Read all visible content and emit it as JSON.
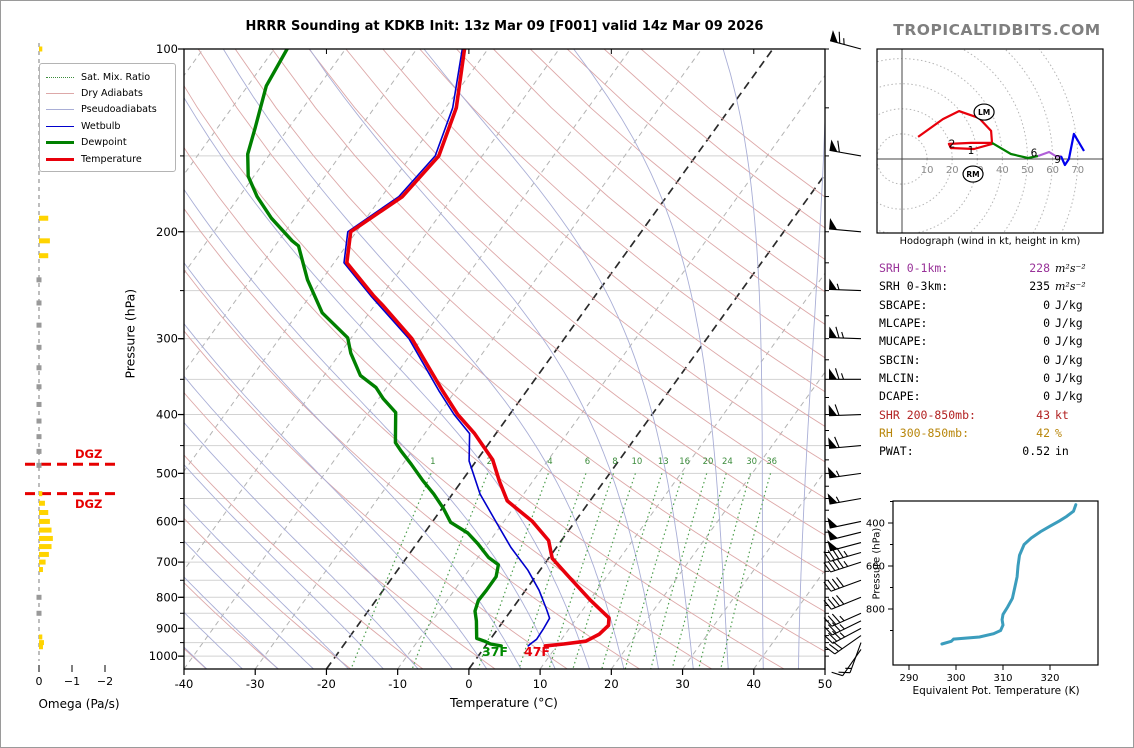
{
  "title": "HRRR Sounding at KDKB Init: 13z Mar 09 [F001] valid 14z Mar 09 2026",
  "watermark": "TROPICALTIDBITS.COM",
  "legend": {
    "items": [
      {
        "label": "Sat. Mix. Ratio",
        "color": "#3c8c3c",
        "style": "dotted",
        "width": 1.2
      },
      {
        "label": "Dry Adiabats",
        "color": "#dda8a8",
        "style": "solid",
        "width": 1.2
      },
      {
        "label": "Pseudoadiabats",
        "color": "#a9aed6",
        "style": "solid",
        "width": 1.2
      },
      {
        "label": "Wetbulb",
        "color": "#0000cc",
        "style": "solid",
        "width": 1.6
      },
      {
        "label": "Dewpoint",
        "color": "#008000",
        "style": "solid",
        "width": 3.2
      },
      {
        "label": "Temperature",
        "color": "#e8000b",
        "style": "solid",
        "width": 3.6
      }
    ]
  },
  "skewt": {
    "xlabel": "Temperature (°C)",
    "ylabel": "Pressure (hPa)",
    "pressure_ticks": [
      100,
      200,
      300,
      400,
      500,
      600,
      700,
      800,
      900,
      1000
    ],
    "temp_ticks": [
      -40,
      -30,
      -20,
      -10,
      0,
      10,
      20,
      30,
      40,
      50
    ],
    "mixratio_labels": [
      1,
      2,
      4,
      6,
      8,
      10,
      13,
      16,
      20,
      24,
      30,
      36
    ],
    "surface_temp_label": "47F",
    "surface_dewp_label": "37F",
    "dgz_label": "DGZ"
  },
  "omega": {
    "label": "Omega (Pa/s)",
    "ticks": [
      0,
      -1,
      -2
    ]
  },
  "hodograph": {
    "caption": "Hodograph (wind in kt, height in km)",
    "ring_labels": [
      10,
      20,
      30,
      40,
      50,
      60,
      70
    ],
    "lm_label": "LM",
    "rm_label": "RM"
  },
  "stats": {
    "rows": [
      {
        "label": "SRH 0-1km:",
        "value": "228",
        "unit": "m²s⁻²",
        "color": "#993399",
        "math_unit": true
      },
      {
        "label": "SRH 0-3km:",
        "value": "235",
        "unit": "m²s⁻²",
        "color": "#000000",
        "math_unit": true
      },
      {
        "label": "SBCAPE:",
        "value": "0",
        "unit": "J/kg",
        "color": "#000000",
        "math_unit": false
      },
      {
        "label": "MLCAPE:",
        "value": "0",
        "unit": "J/kg",
        "color": "#000000",
        "math_unit": false
      },
      {
        "label": "MUCAPE:",
        "value": "0",
        "unit": "J/kg",
        "color": "#000000",
        "math_unit": false
      },
      {
        "label": "SBCIN:",
        "value": "0",
        "unit": "J/kg",
        "color": "#000000",
        "math_unit": false
      },
      {
        "label": "MLCIN:",
        "value": "0",
        "unit": "J/kg",
        "color": "#000000",
        "math_unit": false
      },
      {
        "label": "DCAPE:",
        "value": "0",
        "unit": "J/kg",
        "color": "#000000",
        "math_unit": false
      },
      {
        "label": "SHR 200-850mb:",
        "value": "43",
        "unit": "kt",
        "color": "#b22222",
        "math_unit": false
      },
      {
        "label": "RH 300-850mb:",
        "value": "42",
        "unit": "%",
        "color": "#b8860b",
        "math_unit": false
      },
      {
        "label": "PWAT:",
        "value": "0.52",
        "unit": "in",
        "color": "#000000",
        "math_unit": false
      }
    ]
  },
  "thetae": {
    "xlabel": "Equivalent Pot. Temperature (K)",
    "ylabel": "Pressure (hPa)",
    "x_ticks": [
      290,
      300,
      310,
      320
    ],
    "y_ticks": [
      400,
      600,
      800
    ]
  },
  "chart_data": {
    "type": "skewt-sounding",
    "title": "HRRR Sounding at KDKB Init: 13z Mar 09 [F001] valid 14z Mar 09 2026",
    "skewt": {
      "pressure_range_hPa": [
        100,
        1050
      ],
      "temp_axis_range_C": [
        -40,
        50
      ],
      "skew_isotherm_highlight_C": [
        0,
        -20
      ],
      "temperature_series_p_T": [
        [
          962,
          8.4
        ],
        [
          955,
          10.8
        ],
        [
          945,
          13.6
        ],
        [
          920,
          14.8
        ],
        [
          890,
          15.2
        ],
        [
          865,
          14.5
        ],
        [
          810,
          10.2
        ],
        [
          740,
          4.7
        ],
        [
          690,
          0.5
        ],
        [
          645,
          -1.8
        ],
        [
          600,
          -6.0
        ],
        [
          555,
          -11.6
        ],
        [
          515,
          -14.7
        ],
        [
          475,
          -17.8
        ],
        [
          430,
          -23.0
        ],
        [
          400,
          -27.3
        ],
        [
          365,
          -31.9
        ],
        [
          300,
          -41.4
        ],
        [
          265,
          -48.7
        ],
        [
          255,
          -51.1
        ],
        [
          225,
          -58.2
        ],
        [
          200,
          -60.8
        ],
        [
          175,
          -57.1
        ],
        [
          150,
          -56.1
        ],
        [
          125,
          -58.5
        ],
        [
          100,
          -63.3
        ]
      ],
      "dewpoint_series_p_T": [
        [
          962,
          2.2
        ],
        [
          955,
          0.5
        ],
        [
          945,
          -0.6
        ],
        [
          935,
          -2.0
        ],
        [
          875,
          -3.8
        ],
        [
          843,
          -5.0
        ],
        [
          810,
          -5.6
        ],
        [
          779,
          -5.5
        ],
        [
          740,
          -5.5
        ],
        [
          707,
          -6.4
        ],
        [
          688,
          -8.5
        ],
        [
          653,
          -11.4
        ],
        [
          627,
          -13.9
        ],
        [
          602,
          -17.4
        ],
        [
          570,
          -19.9
        ],
        [
          541,
          -22.6
        ],
        [
          514,
          -25.5
        ],
        [
          483,
          -28.8
        ],
        [
          459,
          -31.6
        ],
        [
          445,
          -33.2
        ],
        [
          397,
          -36.2
        ],
        [
          377,
          -39.3
        ],
        [
          361,
          -41.5
        ],
        [
          345,
          -44.9
        ],
        [
          317,
          -48.5
        ],
        [
          299,
          -50.5
        ],
        [
          272,
          -56.6
        ],
        [
          240,
          -62.0
        ],
        [
          211,
          -66.7
        ],
        [
          207,
          -68.1
        ],
        [
          190,
          -73.3
        ],
        [
          175,
          -77.5
        ],
        [
          162,
          -80.8
        ],
        [
          149,
          -83.1
        ],
        [
          135,
          -84.7
        ],
        [
          115,
          -87.4
        ],
        [
          100,
          -88.2
        ]
      ],
      "wetbulb_series_p_T": [
        [
          962,
          6.0
        ],
        [
          955,
          6.1
        ],
        [
          938,
          6.5
        ],
        [
          900,
          6.4
        ],
        [
          866,
          6.2
        ],
        [
          838,
          4.9
        ],
        [
          779,
          1.9
        ],
        [
          722,
          -1.7
        ],
        [
          662,
          -6.4
        ],
        [
          598,
          -11.3
        ],
        [
          541,
          -16.1
        ],
        [
          477,
          -21.0
        ],
        [
          430,
          -23.7
        ],
        [
          400,
          -27.8
        ],
        [
          365,
          -32.4
        ],
        [
          300,
          -41.8
        ],
        [
          255,
          -51.5
        ],
        [
          225,
          -58.6
        ],
        [
          200,
          -61.2
        ],
        [
          175,
          -57.6
        ],
        [
          150,
          -56.6
        ],
        [
          125,
          -59.0
        ],
        [
          100,
          -63.6
        ]
      ],
      "surface_temp_F": 47,
      "surface_dewp_F": 37,
      "dgz_pressures_hPa": [
        483,
        540
      ],
      "mixing_ratio_lines_gkg": [
        1,
        2,
        4,
        6,
        8,
        10,
        13,
        16,
        20,
        24,
        30,
        36
      ]
    },
    "omega_bars_p_PaPerS": [
      [
        100,
        -0.1
      ],
      [
        118,
        -0.15
      ],
      [
        137,
        -0.2
      ],
      [
        190,
        -0.28
      ],
      [
        207,
        -0.33
      ],
      [
        219,
        -0.28
      ],
      [
        240,
        -0.02
      ],
      [
        262,
        -0.02
      ],
      [
        285,
        -0.03
      ],
      [
        310,
        -0.03
      ],
      [
        335,
        -0.03
      ],
      [
        360,
        -0.04
      ],
      [
        385,
        -0.04
      ],
      [
        410,
        -0.05
      ],
      [
        435,
        -0.05
      ],
      [
        460,
        -0.05
      ],
      [
        485,
        -0.04
      ],
      [
        540,
        -0.1
      ],
      [
        560,
        -0.18
      ],
      [
        580,
        -0.28
      ],
      [
        600,
        -0.33
      ],
      [
        620,
        -0.38
      ],
      [
        640,
        -0.42
      ],
      [
        660,
        -0.38
      ],
      [
        680,
        -0.3
      ],
      [
        700,
        -0.2
      ],
      [
        720,
        -0.12
      ],
      [
        800,
        -0.03
      ],
      [
        850,
        -0.05
      ],
      [
        930,
        -0.1
      ],
      [
        950,
        -0.15
      ],
      [
        965,
        -0.12
      ]
    ],
    "wind_barbs_p_kt_dir": [
      [
        100,
        65,
        285
      ],
      [
        150,
        60,
        280
      ],
      [
        200,
        50,
        275
      ],
      [
        250,
        55,
        272
      ],
      [
        300,
        65,
        272
      ],
      [
        350,
        65,
        270
      ],
      [
        400,
        60,
        268
      ],
      [
        450,
        60,
        265
      ],
      [
        500,
        55,
        262
      ],
      [
        550,
        55,
        260
      ],
      [
        600,
        50,
        258
      ],
      [
        625,
        50,
        256
      ],
      [
        650,
        50,
        255
      ],
      [
        675,
        45,
        254
      ],
      [
        700,
        45,
        252
      ],
      [
        750,
        40,
        250
      ],
      [
        800,
        40,
        248
      ],
      [
        850,
        35,
        246
      ],
      [
        875,
        35,
        244
      ],
      [
        900,
        35,
        242
      ],
      [
        925,
        30,
        235
      ],
      [
        950,
        15,
        200
      ],
      [
        975,
        10,
        215
      ]
    ],
    "hodograph": {
      "units": "kt",
      "rings_kt": [
        10,
        20,
        30,
        40,
        50,
        60,
        70
      ],
      "segments": [
        {
          "layer_km": "0-3",
          "color": "#e8000b",
          "points_uv": [
            [
              6.4,
              8.8
            ],
            [
              16.3,
              15.9
            ],
            [
              22.7,
              19.1
            ],
            [
              30.7,
              16.3
            ],
            [
              35.5,
              11.2
            ],
            [
              35.9,
              6.0
            ],
            [
              28.7,
              4.0
            ],
            [
              19.5,
              4.4
            ],
            [
              18.7,
              6.0
            ],
            [
              27.5,
              6.4
            ],
            [
              35.9,
              6.4
            ]
          ]
        },
        {
          "layer_km": "3-6",
          "color": "#008000",
          "points_uv": [
            [
              35.9,
              6.4
            ],
            [
              43.4,
              2.0
            ],
            [
              50.2,
              0.4
            ],
            [
              54.2,
              1.2
            ]
          ]
        },
        {
          "layer_km": "6-9",
          "color": "#b060d8",
          "points_uv": [
            [
              54.2,
              1.2
            ],
            [
              58.6,
              2.8
            ],
            [
              61.5,
              1.0
            ],
            [
              63.3,
              1.2
            ]
          ]
        },
        {
          "layer_km": "9-12",
          "color": "#0000ee",
          "points_uv": [
            [
              63.3,
              1.2
            ],
            [
              64.9,
              -2.4
            ],
            [
              66.5,
              0.0
            ],
            [
              68.5,
              10.0
            ],
            [
              72.5,
              3.2
            ]
          ]
        }
      ],
      "height_marks": [
        {
          "label": "1",
          "u": 27.5,
          "v": 3.6
        },
        {
          "label": "2",
          "u": 19.9,
          "v": 6.2
        },
        {
          "label": "6",
          "u": 52.6,
          "v": 2.6
        },
        {
          "label": "9",
          "u": 62.0,
          "v": 0.0
        }
      ],
      "left_mover_uv": [
        32.7,
        18.7
      ],
      "right_mover_uv": [
        28.3,
        -6.0
      ]
    },
    "theta_e_profile_K_hPa": [
      [
        297,
        963
      ],
      [
        299,
        950
      ],
      [
        299.5,
        940
      ],
      [
        305,
        930
      ],
      [
        308,
        915
      ],
      [
        309.5,
        900
      ],
      [
        310,
        875
      ],
      [
        309.8,
        850
      ],
      [
        310,
        825
      ],
      [
        311,
        790
      ],
      [
        312,
        750
      ],
      [
        312.5,
        700
      ],
      [
        313,
        650
      ],
      [
        313.2,
        600
      ],
      [
        313.5,
        550
      ],
      [
        314.5,
        500
      ],
      [
        316,
        470
      ],
      [
        318,
        440
      ],
      [
        320,
        415
      ],
      [
        322,
        390
      ],
      [
        323.5,
        370
      ],
      [
        325,
        345
      ],
      [
        325.5,
        315
      ]
    ]
  }
}
